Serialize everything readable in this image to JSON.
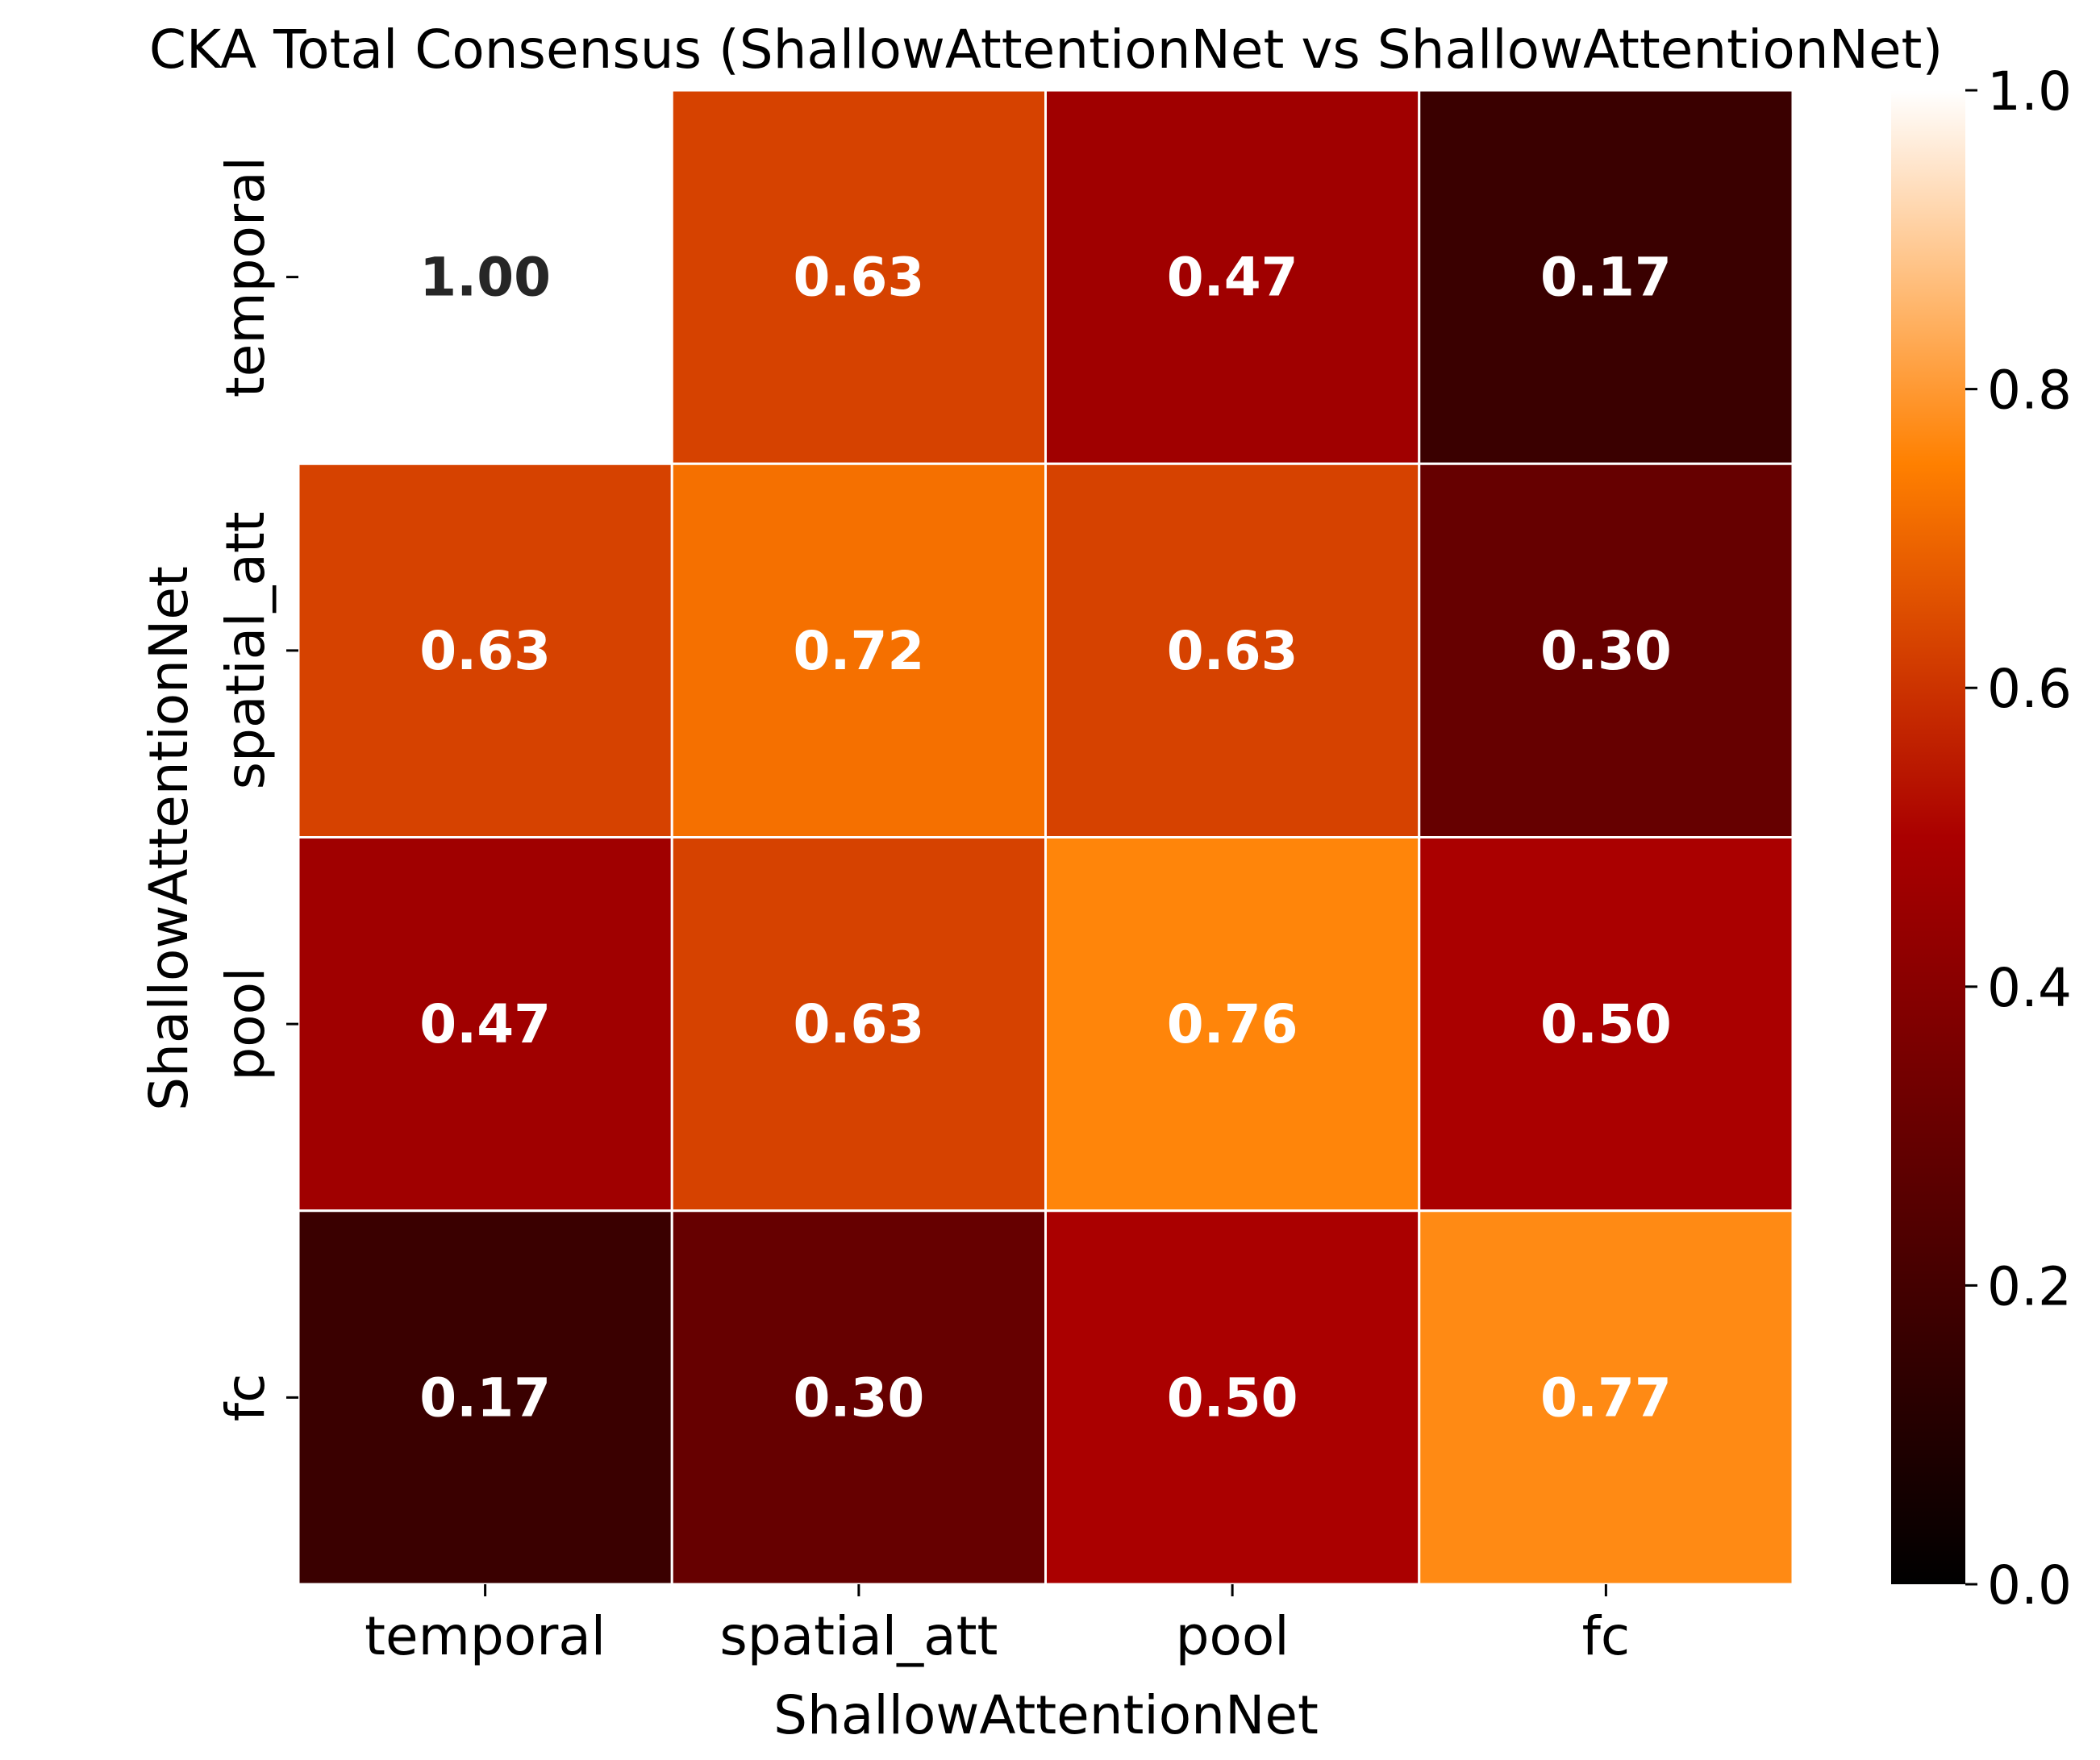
{
  "chart_data": {
    "type": "heatmap",
    "title": "CKA Total Consensus (ShallowAttentionNet vs ShallowAttentionNet)",
    "xlabel": "ShallowAttentionNet",
    "ylabel": "ShallowAttentionNet",
    "x_categories": [
      "temporal",
      "spatial_att",
      "pool",
      "fc"
    ],
    "y_categories": [
      "temporal",
      "spatial_att",
      "pool",
      "fc"
    ],
    "values": [
      [
        1.0,
        0.63,
        0.47,
        0.17
      ],
      [
        0.63,
        0.72,
        0.63,
        0.3
      ],
      [
        0.47,
        0.63,
        0.76,
        0.5
      ],
      [
        0.17,
        0.3,
        0.5,
        0.77
      ]
    ],
    "value_format": "2 decimals",
    "colormap": "gist_heat",
    "vmin": 0.0,
    "vmax": 1.0,
    "colorbar": {
      "ticks": [
        0.0,
        0.2,
        0.4,
        0.6,
        0.8,
        1.0
      ],
      "tick_labels": [
        "0.0",
        "0.2",
        "0.4",
        "0.6",
        "0.8",
        "1.0"
      ]
    },
    "cell_border_color": "#ffffff",
    "annotation_color_light": "#ffffff",
    "annotation_color_dark": "#262626"
  }
}
